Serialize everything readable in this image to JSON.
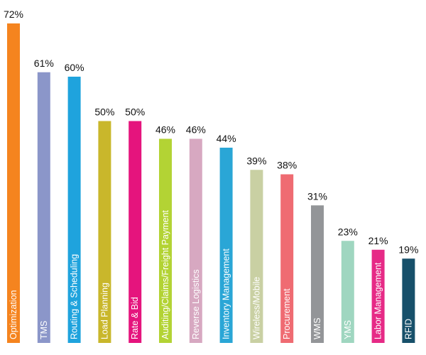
{
  "chart_data": {
    "type": "bar",
    "title": "",
    "xlabel": "",
    "ylabel": "",
    "ylim": [
      0,
      72
    ],
    "grid": false,
    "legend": "none",
    "categories": [
      "Optimization",
      "TMS",
      "Routing & Scheduling",
      "Load Planning",
      "Rate & Bid",
      "Auditing/Claims/Freight Payment",
      "Reverse Logistics",
      "Inventory Management",
      "Wireless/Mobile",
      "Procurement",
      "WMS",
      "YMS",
      "Labor Management",
      "RFID"
    ],
    "values": [
      72,
      61,
      60,
      50,
      50,
      46,
      46,
      44,
      39,
      38,
      31,
      23,
      21,
      19
    ],
    "value_labels": [
      "72%",
      "61%",
      "60%",
      "50%",
      "50%",
      "46%",
      "46%",
      "44%",
      "39%",
      "38%",
      "31%",
      "23%",
      "21%",
      "19%"
    ],
    "colors": [
      "#f5841f",
      "#8b96c9",
      "#1fa3dd",
      "#c9b72b",
      "#e5147d",
      "#b3d334",
      "#d7a8c1",
      "#2aa6d6",
      "#c9d0a3",
      "#ef6b72",
      "#939598",
      "#9fd6c0",
      "#e62a86",
      "#17506a"
    ]
  }
}
